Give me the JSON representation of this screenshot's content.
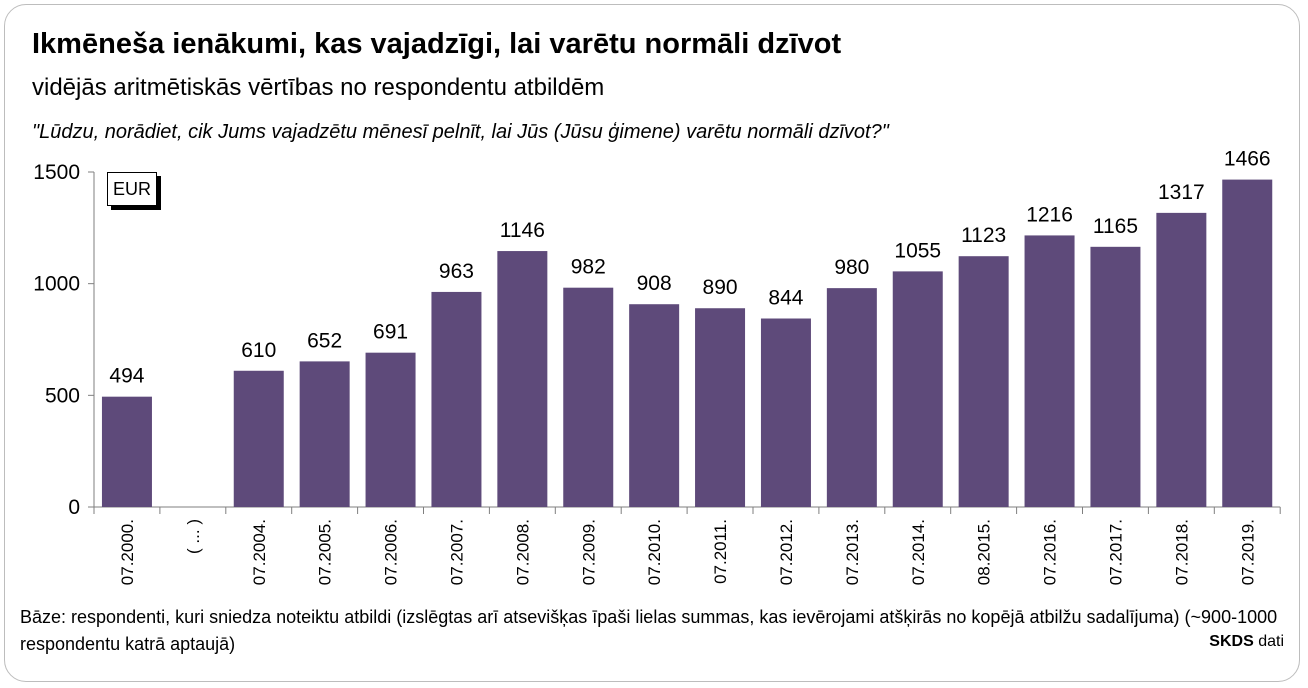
{
  "title": "Ikmēneša ienākumi, kas vajadzīgi, lai varētu normāli dzīvot",
  "subtitle": "vidējās aritmētiskās vērtības no respondentu atbildēm",
  "question": "\"Lūdzu, norādiet, cik Jums vajadzētu mēnesī pelnīt, lai Jūs (Jūsu ģimene) varētu normāli dzīvot?\"",
  "unit_label": "EUR",
  "note": "Bāze: respondenti, kuri sniedza noteiktu atbildi (izslēgtas arī atsevišķas īpaši lielas summas, kas ievērojami atšķirās no kopējā atbilžu sadalījuma) (~900-1000 respondentu katrā aptaujā)",
  "source_brand": "SKDS",
  "source_suffix": "dati",
  "colors": {
    "bar": "#5e4a7a",
    "axis": "#7f7f7f"
  },
  "chart_data": {
    "type": "bar",
    "title": "Ikmēneša ienākumi, kas vajadzīgi, lai varētu normāli dzīvot",
    "subtitle": "vidējās aritmētiskās vērtības no respondentu atbildēm",
    "categories": [
      "07.2000.",
      "( ... )",
      "07.2004.",
      "07.2005.",
      "07.2006.",
      "07.2007.",
      "07.2008.",
      "07.2009.",
      "07.2010.",
      "07.2011.",
      "07.2012.",
      "07.2013.",
      "07.2014.",
      "08.2015.",
      "07.2016.",
      "07.2017.",
      "07.2018.",
      "07.2019."
    ],
    "values": [
      494,
      null,
      610,
      652,
      691,
      963,
      1146,
      982,
      908,
      890,
      844,
      980,
      1055,
      1123,
      1216,
      1165,
      1317,
      1466
    ],
    "ylim": [
      0,
      1500
    ],
    "yticks": [
      0,
      500,
      1000,
      1500
    ],
    "xlabel": "",
    "ylabel": "",
    "grid": false,
    "data_labels": true
  }
}
